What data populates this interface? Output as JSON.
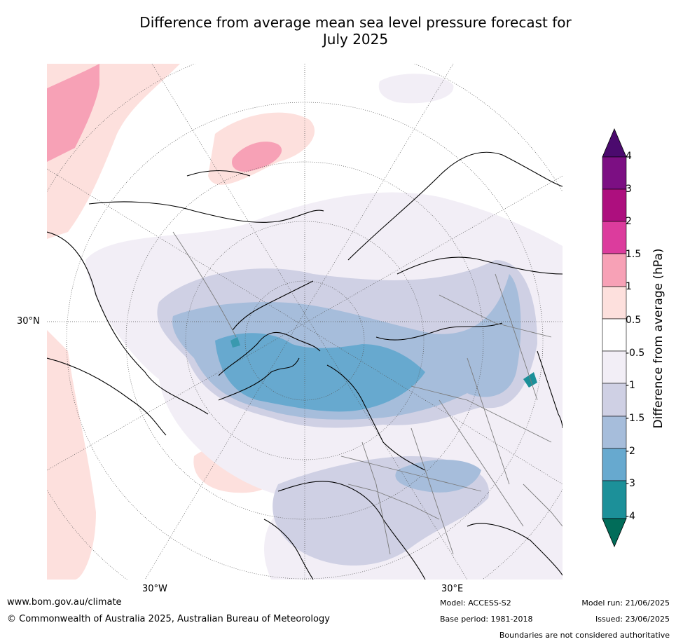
{
  "title_line1": "Difference from average mean sea level pressure forecast for",
  "title_line2": "July 2025",
  "map": {
    "lat_labels": [
      "30°N"
    ],
    "lon_labels": [
      "30°W",
      "30°E"
    ]
  },
  "colorbar": {
    "title": "Difference from average (hPa)",
    "levels": [
      "4",
      "3",
      "2",
      "1.5",
      "1",
      "0.5",
      "-0.5",
      "-1",
      "-1.5",
      "-2",
      "-3",
      "-4"
    ],
    "colors": {
      "above_4": "#4b0a6e",
      "3_to_4": "#7c0f83",
      "2_to_3": "#ad0f7e",
      "1.5_to_2": "#dc3c9d",
      "1_to_1.5": "#f7a1b6",
      "0.5_to_1": "#fde0dd",
      "-0.5_to_0.5": "#ffffff",
      "-1_to_-0.5": "#f2eef6",
      "-1.5_to_-1": "#cfd0e4",
      "-2_to_-1.5": "#a6bddb",
      "-3_to_-2": "#67a9cf",
      "-4_to_-3": "#1c9099",
      "below_-4": "#016c59"
    }
  },
  "footer": {
    "website": "www.bom.gov.au/climate",
    "copyright": "© Commonwealth of Australia 2025, Australian Bureau of Meteorology",
    "model": "Model: ACCESS-S2",
    "base_period": "Base period: 1981-2018",
    "model_run": "Model run: 21/06/2025",
    "issued": "Issued: 23/06/2025",
    "disclaimer": "Boundaries are not considered authoritative"
  }
}
